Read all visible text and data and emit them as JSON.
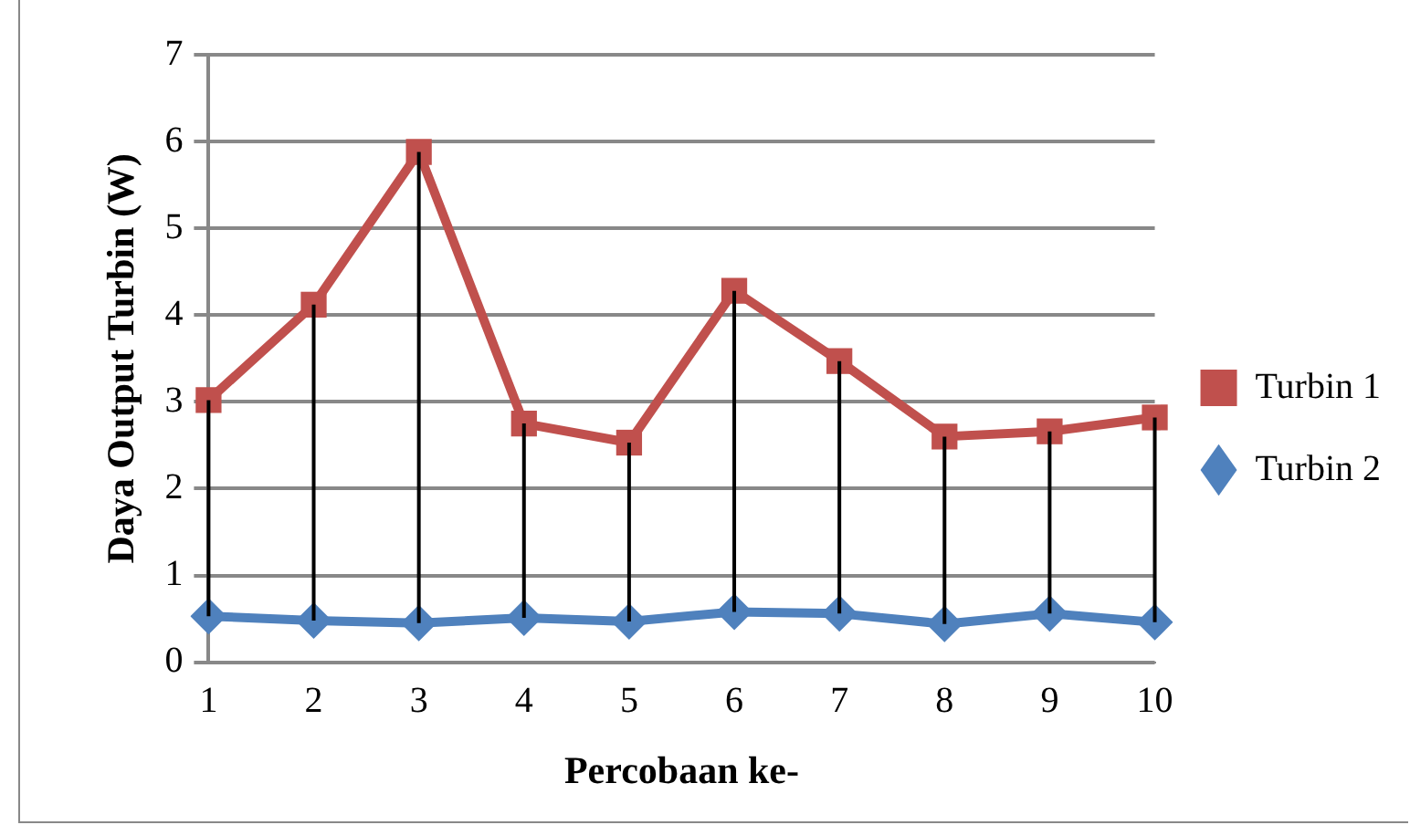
{
  "chart_data": {
    "type": "line",
    "xlabel": "Percobaan ke-",
    "ylabel": "Daya Output Turbin (W)",
    "categories": [
      "1",
      "2",
      "3",
      "4",
      "5",
      "6",
      "7",
      "8",
      "9",
      "10"
    ],
    "series": [
      {
        "name": "Turbin 1",
        "color": "#c0504d",
        "marker": "square",
        "values": [
          3.02,
          4.12,
          5.88,
          2.75,
          2.53,
          4.28,
          3.47,
          2.6,
          2.66,
          2.82
        ]
      },
      {
        "name": "Turbin 2",
        "color": "#4f81bd",
        "marker": "diamond",
        "values": [
          0.53,
          0.48,
          0.45,
          0.51,
          0.47,
          0.58,
          0.56,
          0.44,
          0.56,
          0.46
        ],
        "errors": [
          [
            0.53,
            3.02
          ],
          [
            0.48,
            4.12
          ],
          [
            0.45,
            5.88
          ],
          [
            0.51,
            2.75
          ],
          [
            0.47,
            2.53
          ],
          [
            0.58,
            4.28
          ],
          [
            0.56,
            3.47
          ],
          [
            0.44,
            2.6
          ],
          [
            0.56,
            2.66
          ],
          [
            0.46,
            2.82
          ]
        ]
      }
    ],
    "ylim": [
      0,
      7
    ],
    "yticks": [
      0,
      1,
      2,
      3,
      4,
      5,
      6,
      7
    ],
    "grid": "y",
    "legend": "right",
    "line_style": "solid"
  }
}
